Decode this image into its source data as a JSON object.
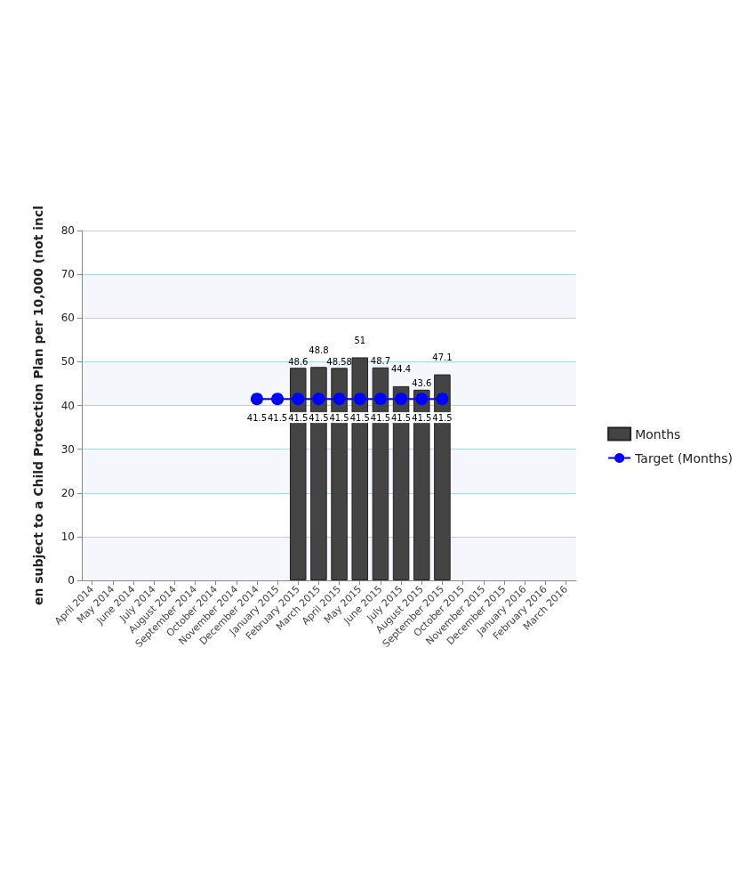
{
  "chart_data": {
    "type": "bar",
    "ylabel": "en subject to a Child Protection Plan per 10,000 (not incl",
    "categories": [
      "April 2014",
      "May 2014",
      "June 2014",
      "July 2014",
      "August 2014",
      "September 2014",
      "October 2014",
      "November 2014",
      "December 2014",
      "January 2015",
      "February 2015",
      "March 2015",
      "April 2015",
      "May 2015",
      "June 2015",
      "July 2015",
      "August 2015",
      "September 2015",
      "October 2015",
      "November 2015",
      "December 2015",
      "January 2016",
      "February 2016",
      "March 2016"
    ],
    "series": [
      {
        "name": "Months",
        "color": "#444444",
        "values": [
          null,
          null,
          null,
          null,
          null,
          null,
          null,
          null,
          null,
          null,
          48.6,
          48.8,
          48.58,
          51,
          48.7,
          44.4,
          43.6,
          47.1,
          null,
          null,
          null,
          null,
          null,
          null
        ]
      },
      {
        "name": "Target (Months)",
        "type": "line",
        "color": "#0000ff",
        "marker": "circle",
        "values": [
          null,
          null,
          null,
          null,
          null,
          null,
          null,
          null,
          41.5,
          41.5,
          41.5,
          41.5,
          41.5,
          41.5,
          41.5,
          41.5,
          41.5,
          41.5,
          null,
          null,
          null,
          null,
          null,
          null
        ]
      }
    ],
    "ylim": [
      0,
      80
    ],
    "yticks": [
      0,
      10,
      20,
      30,
      40,
      50,
      60,
      70,
      80
    ],
    "grid": "y",
    "legend": "right",
    "data_labels": true
  }
}
